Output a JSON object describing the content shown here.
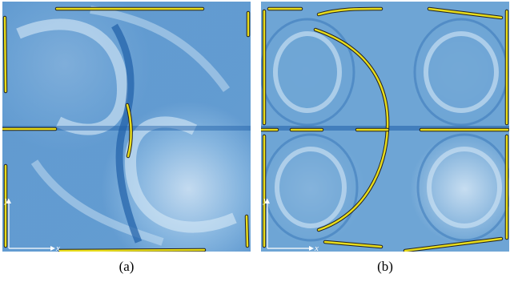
{
  "panels": [
    {
      "id": "a",
      "caption": "(a)",
      "x_axis_label": "x",
      "y_axis_label": "y"
    },
    {
      "id": "b",
      "caption": "(b)",
      "x_axis_label": "x",
      "y_axis_label": "y"
    }
  ],
  "colors": {
    "field_light": "#dcecf8",
    "field_mid": "#6fa6d6",
    "field_dark": "#1f5fa8",
    "ridge_yellow": "#e8dc1a",
    "ridge_outline": "#222222",
    "axis_white": "#ffffff"
  }
}
